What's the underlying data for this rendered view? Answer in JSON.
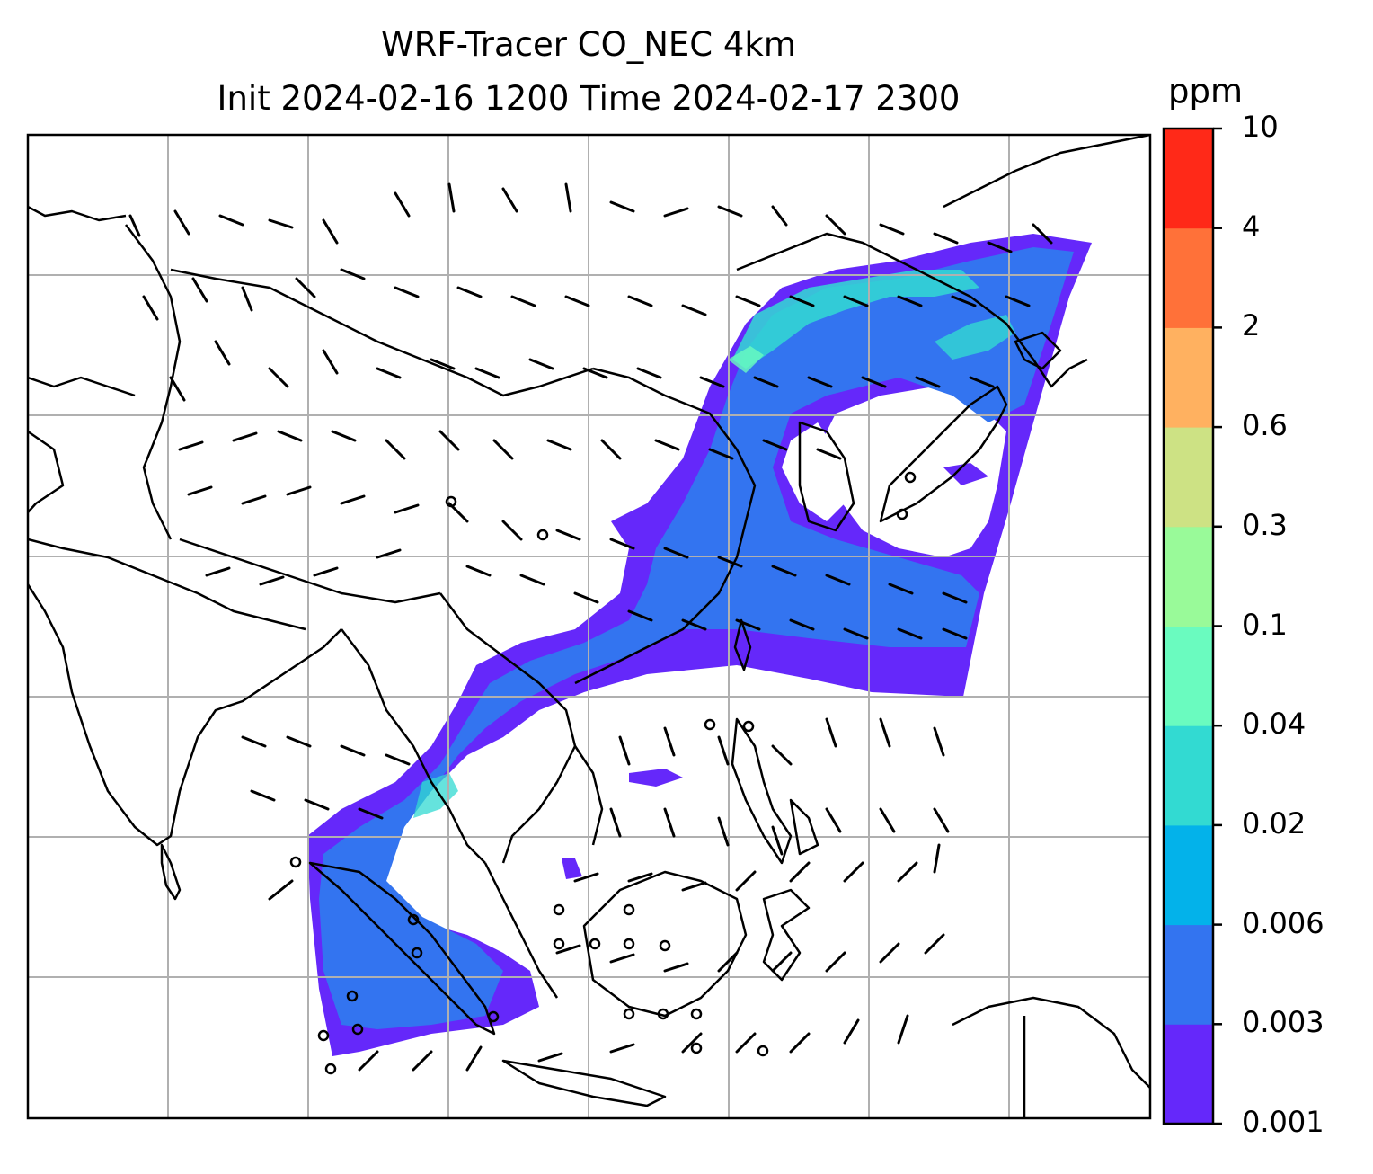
{
  "title_line1": "WRF-Tracer CO_NEC 4km",
  "title_line2": "Init 2024-02-16 1200 Time 2024-02-17 2300",
  "colorbar": {
    "unit": "ppm",
    "ticks": [
      "0.001",
      "0.003",
      "0.006",
      "0.02",
      "0.04",
      "0.1",
      "0.3",
      "0.6",
      "2",
      "4",
      "10"
    ],
    "colors": [
      "#6528fa",
      "#3374f0",
      "#03b2ea",
      "#32dad2",
      "#6afbbf",
      "#99fa99",
      "#cde284",
      "#ffb160",
      "#ff7139",
      "#ff2918"
    ]
  },
  "map": {
    "coastline_color": "#000000",
    "grid_color": "#b0b0b0",
    "wind_barb_color": "#000000"
  }
}
